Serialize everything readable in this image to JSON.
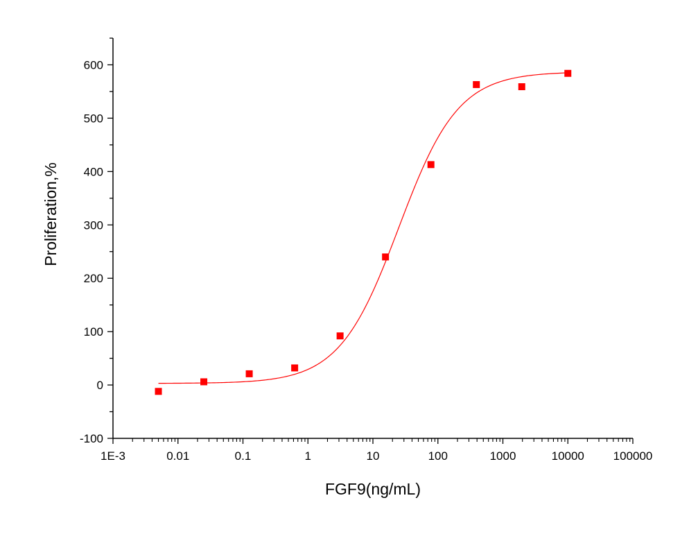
{
  "chart_data": {
    "type": "scatter",
    "title": "",
    "xlabel": "FGF9(ng/mL)",
    "ylabel": "Proliferation,%",
    "x_scale": "log",
    "xlim": [
      0.001,
      100000
    ],
    "ylim": [
      -100,
      650
    ],
    "x_ticks": [
      0.001,
      0.01,
      0.1,
      1,
      10,
      100,
      1000,
      10000,
      100000
    ],
    "x_tick_labels": [
      "1E-3",
      "0.01",
      "0.1",
      "1",
      "10",
      "100",
      "1000",
      "10000",
      "100000"
    ],
    "y_ticks": [
      -100,
      0,
      100,
      200,
      300,
      400,
      500,
      600
    ],
    "y_tick_labels": [
      "-100",
      "0",
      "100",
      "200",
      "300",
      "400",
      "500",
      "600"
    ],
    "grid": false,
    "legend": "none",
    "series": [
      {
        "kind": "points",
        "color": "#ff0000",
        "marker": "square",
        "x": [
          0.005,
          0.025,
          0.125,
          0.625,
          3.125,
          15.625,
          78.125,
          390.625,
          1953.125,
          10000
        ],
        "y": [
          -12,
          6,
          21,
          32,
          92,
          240,
          413,
          563,
          559,
          584
        ]
      },
      {
        "kind": "fit-curve",
        "color": "#ff0000",
        "model": "4PL",
        "bottom": 3,
        "top": 587,
        "ec50": 25,
        "hill": 0.95,
        "x_range": [
          0.005,
          10000
        ]
      }
    ]
  }
}
